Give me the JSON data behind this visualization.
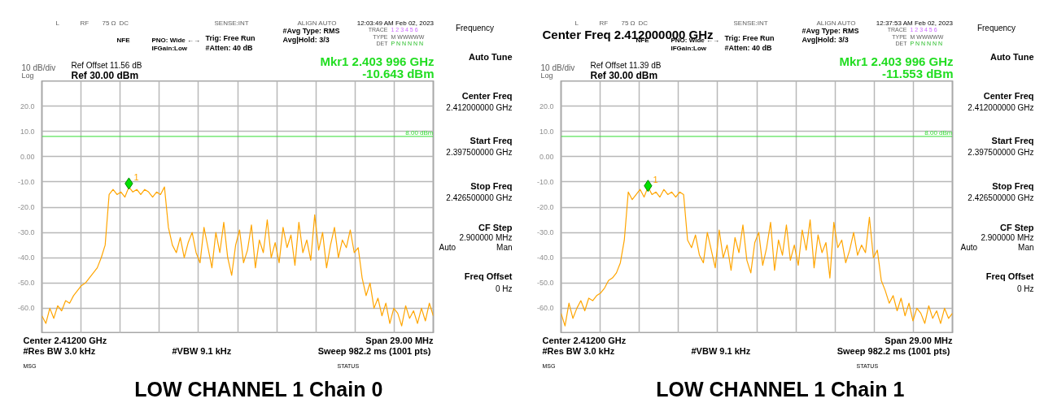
{
  "chart_data": [
    {
      "type": "line",
      "title": "LOW CHANNEL 1 Chain 0",
      "categories": [
        null,
        null,
        null,
        null,
        null,
        null,
        null,
        null,
        null,
        null,
        null,
        null,
        null,
        null,
        null,
        null,
        null,
        null,
        null,
        null,
        null,
        null,
        null,
        null,
        null,
        null,
        null,
        null,
        null,
        null,
        null,
        null,
        null,
        null,
        null,
        null,
        null,
        null,
        null,
        null,
        null,
        null,
        null,
        null,
        null,
        null,
        null,
        null,
        null,
        null,
        null,
        null,
        null,
        null,
        null,
        null,
        null,
        null,
        null,
        null,
        null,
        null,
        null,
        null,
        null,
        null,
        null,
        null,
        null,
        null,
        null,
        null,
        null,
        null,
        null,
        null,
        null,
        null,
        null,
        null,
        null,
        null,
        null,
        null,
        null,
        null,
        null,
        null,
        null,
        null,
        null,
        null,
        null,
        null,
        null,
        null,
        null,
        null,
        null,
        null
      ],
      "series": [
        {
          "color": "#ffa500",
          "values": [
            -63,
            -66,
            -60,
            -64,
            -59,
            -61,
            -57,
            -58,
            -55,
            -53,
            -51,
            -50,
            -48,
            -46,
            -44,
            -40,
            -35,
            -15,
            -13,
            -15,
            -14,
            -16,
            -12,
            -14,
            -13,
            -15,
            -13,
            -14,
            -16,
            -14,
            -15,
            -12,
            -28,
            -35,
            -38,
            -32,
            -40,
            -34,
            -30,
            -38,
            -42,
            -28,
            -36,
            -44,
            -30,
            -38,
            -26,
            -40,
            -47,
            -35,
            -29,
            -42,
            -37,
            -27,
            -44,
            -33,
            -38,
            -25,
            -40,
            -34,
            -42,
            -28,
            -36,
            -31,
            -43,
            -26,
            -38,
            -33,
            -41,
            -23,
            -37,
            -30,
            -44,
            -35,
            -28,
            -40,
            -33,
            -36,
            -29,
            -38,
            -36,
            -48,
            -55,
            -50,
            -60,
            -56,
            -63,
            -58,
            -66,
            -60,
            -62,
            -67,
            -59,
            -64,
            -61,
            -66,
            -60,
            -65,
            -58,
            -63
          ]
        },
        {
          "type": "scatter",
          "name": "1",
          "marker": "diamond",
          "color": "#00e000",
          "values": [
            null,
            null,
            null,
            null,
            null,
            null,
            null,
            null,
            null,
            null,
            null,
            null,
            null,
            null,
            null,
            null,
            null,
            null,
            null,
            null,
            null,
            null,
            -10.643,
            null,
            null,
            null,
            null,
            null,
            null,
            null,
            null,
            null,
            null,
            null,
            null,
            null,
            null,
            null,
            null,
            null,
            null,
            null,
            null,
            null,
            null,
            null,
            null,
            null,
            null,
            null,
            null,
            null,
            null,
            null,
            null,
            null,
            null,
            null,
            null,
            null,
            null,
            null,
            null,
            null,
            null,
            null,
            null,
            null,
            null,
            null,
            null,
            null,
            null,
            null,
            null,
            null,
            null,
            null,
            null,
            null,
            null,
            null,
            null,
            null,
            null,
            null,
            null,
            null,
            null,
            null,
            null,
            null,
            null,
            null,
            null,
            null,
            null,
            null,
            null,
            null
          ]
        }
      ],
      "ylim": [
        -70,
        30
      ],
      "yticks": [
        {
          "value": 20,
          "label": "20.0"
        },
        {
          "value": 10,
          "label": "10.0"
        },
        {
          "value": 0,
          "label": "0.00"
        },
        {
          "value": -10,
          "label": "-10.0"
        },
        {
          "value": -20,
          "label": "-20.0"
        },
        {
          "value": -30,
          "label": "-30.0"
        },
        {
          "value": -40,
          "label": "-40.0"
        },
        {
          "value": -50,
          "label": "-50.0"
        },
        {
          "value": -60,
          "label": "-60.0"
        }
      ],
      "tick_labels": "y",
      "grid": true,
      "ref_lines": [
        {
          "axis": "y",
          "value": 8,
          "label": "8.00 dBm",
          "color": "#33dd33"
        }
      ],
      "annotations": [
        "L",
        "RF",
        "75 Ω",
        "DC",
        "SENSE:INT",
        "ALIGN AUTO",
        "12:03:49 AM Feb 02, 2023",
        "NFE",
        "PNO: Wide ←→",
        "IFGain:Low",
        "Trig: Free Run",
        "#Atten: 40 dB",
        "#Avg Type: RMS",
        "Avg|Hold: 3/3",
        "TRACE",
        "1 2 3 4 5 6",
        "TYPE",
        "M WWWWW",
        "DET",
        "P N N N N N",
        "Ref Offset 11.56 dB",
        "10 dB/div",
        "Ref 30.00 dBm",
        "Log",
        "Mkr1 2.403 996 GHz",
        "-10.643 dBm",
        "Center 2.41200 GHz",
        "Span 29.00 MHz",
        "#Res BW 3.0 kHz",
        "#VBW 9.1 kHz",
        "Sweep  982.2 ms (1001 pts)",
        "MSG",
        "STATUS",
        "Frequency",
        "Auto Tune",
        "Center Freq",
        "2.412000000 GHz",
        "Start Freq",
        "2.397500000 GHz",
        "Stop Freq",
        "2.426500000 GHz",
        "CF Step",
        "2.900000 MHz",
        "Auto",
        "Man",
        "Freq Offset",
        "0 Hz"
      ]
    },
    {
      "type": "line",
      "title": "LOW CHANNEL 1 Chain 1",
      "categories": [
        null,
        null,
        null,
        null,
        null,
        null,
        null,
        null,
        null,
        null,
        null,
        null,
        null,
        null,
        null,
        null,
        null,
        null,
        null,
        null,
        null,
        null,
        null,
        null,
        null,
        null,
        null,
        null,
        null,
        null,
        null,
        null,
        null,
        null,
        null,
        null,
        null,
        null,
        null,
        null,
        null,
        null,
        null,
        null,
        null,
        null,
        null,
        null,
        null,
        null,
        null,
        null,
        null,
        null,
        null,
        null,
        null,
        null,
        null,
        null,
        null,
        null,
        null,
        null,
        null,
        null,
        null,
        null,
        null,
        null,
        null,
        null,
        null,
        null,
        null,
        null,
        null,
        null,
        null,
        null,
        null,
        null,
        null,
        null,
        null,
        null,
        null,
        null,
        null,
        null,
        null,
        null,
        null,
        null,
        null,
        null,
        null,
        null,
        null,
        null
      ],
      "series": [
        {
          "color": "#ffa500",
          "values": [
            -62,
            -67,
            -58,
            -64,
            -60,
            -57,
            -61,
            -56,
            -57,
            -55,
            -54,
            -52,
            -49,
            -48,
            -46,
            -42,
            -33,
            -14,
            -17,
            -15,
            -13,
            -16,
            -12,
            -15,
            -14,
            -16,
            -13,
            -15,
            -14,
            -16,
            -14,
            -15,
            -33,
            -36,
            -31,
            -39,
            -42,
            -30,
            -37,
            -44,
            -29,
            -40,
            -35,
            -45,
            -32,
            -38,
            -27,
            -41,
            -46,
            -34,
            -30,
            -43,
            -36,
            -26,
            -45,
            -33,
            -39,
            -27,
            -41,
            -35,
            -43,
            -29,
            -37,
            -25,
            -44,
            -31,
            -38,
            -34,
            -48,
            -26,
            -36,
            -33,
            -42,
            -37,
            -30,
            -39,
            -35,
            -38,
            -24,
            -40,
            -37,
            -49,
            -53,
            -58,
            -55,
            -61,
            -56,
            -63,
            -58,
            -65,
            -60,
            -62,
            -66,
            -59,
            -64,
            -61,
            -66,
            -60,
            -64,
            -62
          ]
        },
        {
          "type": "scatter",
          "name": "1",
          "marker": "diamond",
          "color": "#00e000",
          "values": [
            null,
            null,
            null,
            null,
            null,
            null,
            null,
            null,
            null,
            null,
            null,
            null,
            null,
            null,
            null,
            null,
            null,
            null,
            null,
            null,
            null,
            null,
            -11.553,
            null,
            null,
            null,
            null,
            null,
            null,
            null,
            null,
            null,
            null,
            null,
            null,
            null,
            null,
            null,
            null,
            null,
            null,
            null,
            null,
            null,
            null,
            null,
            null,
            null,
            null,
            null,
            null,
            null,
            null,
            null,
            null,
            null,
            null,
            null,
            null,
            null,
            null,
            null,
            null,
            null,
            null,
            null,
            null,
            null,
            null,
            null,
            null,
            null,
            null,
            null,
            null,
            null,
            null,
            null,
            null,
            null,
            null,
            null,
            null,
            null,
            null,
            null,
            null,
            null,
            null,
            null,
            null,
            null,
            null,
            null,
            null,
            null,
            null,
            null,
            null,
            null
          ]
        }
      ],
      "ylim": [
        -70,
        30
      ],
      "yticks": [
        {
          "value": 20,
          "label": "20.0"
        },
        {
          "value": 10,
          "label": "10.0"
        },
        {
          "value": 0,
          "label": "0.00"
        },
        {
          "value": -10,
          "label": "-10.0"
        },
        {
          "value": -20,
          "label": "-20.0"
        },
        {
          "value": -30,
          "label": "-30.0"
        },
        {
          "value": -40,
          "label": "-40.0"
        },
        {
          "value": -50,
          "label": "-50.0"
        },
        {
          "value": -60,
          "label": "-60.0"
        }
      ],
      "tick_labels": "y",
      "grid": true,
      "ref_lines": [
        {
          "axis": "y",
          "value": 8,
          "label": "8.00 dBm",
          "color": "#33dd33"
        }
      ],
      "annotations": [
        "L",
        "RF",
        "75 Ω",
        "DC",
        "SENSE:INT",
        "ALIGN AUTO",
        "12:37:53 AM Feb 02, 2023",
        "NFE",
        "PNO: Wide ←→",
        "IFGain:Low",
        "Trig: Free Run",
        "#Atten: 40 dB",
        "#Avg Type: RMS",
        "Avg|Hold: 3/3",
        "TRACE",
        "1 2 3 4 5 6",
        "TYPE",
        "M WWWWW",
        "DET",
        "P N N N N N",
        "Ref Offset 11.39 dB",
        "10 dB/div",
        "Ref 30.00 dBm",
        "Log",
        "Mkr1 2.403 996 GHz",
        "-11.553 dBm",
        "Center 2.41200 GHz",
        "Span 29.00 MHz",
        "#Res BW 3.0 kHz",
        "#VBW 9.1 kHz",
        "Sweep  982.2 ms (1001 pts)",
        "MSG",
        "STATUS",
        "Frequency",
        "Auto Tune",
        "Center Freq",
        "2.412000000 GHz",
        "Start Freq",
        "2.397500000 GHz",
        "Stop Freq",
        "2.426500000 GHz",
        "CF Step",
        "2.900000 MHz",
        "Auto",
        "Man",
        "Freq Offset",
        "0 Hz",
        "Center Freq 2.412000000 GHz"
      ]
    }
  ]
}
